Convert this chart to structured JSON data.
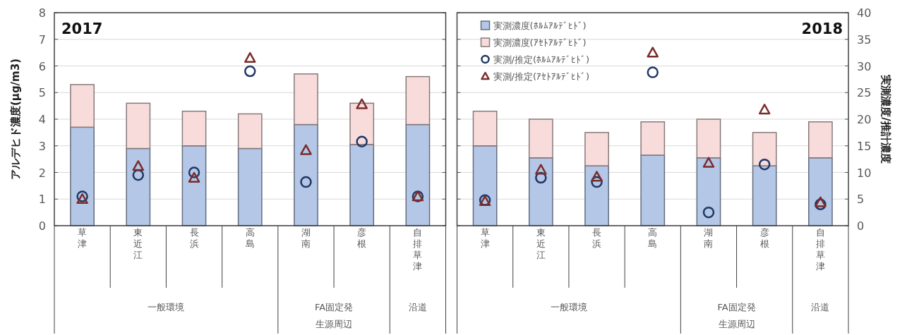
{
  "chart_data": [
    {
      "type": "bar",
      "stacked": true,
      "title": "2017",
      "ylabel": "アルデヒド濃度(μg/m3)",
      "categories": [
        "草津",
        "東近江",
        "長浜",
        "高島",
        "湖南",
        "彦根",
        "自排草津"
      ],
      "ylim": [
        0,
        8
      ],
      "yticks": [
        0,
        1,
        2,
        3,
        4,
        5,
        6,
        7,
        8
      ],
      "y2lim": [
        0,
        40
      ],
      "tick_labels": [
        "x",
        "y"
      ],
      "grid": "y",
      "annotations": [
        "一般環境",
        "FA固定発生源周辺",
        "沿道"
      ],
      "series": [
        {
          "color": "#b4c7e7",
          "values": [
            3.7,
            2.9,
            3.0,
            2.9,
            3.8,
            3.05,
            3.8
          ]
        },
        {
          "color": "#f8dcdc",
          "values": [
            1.6,
            1.7,
            1.3,
            1.3,
            1.9,
            1.55,
            1.8
          ]
        },
        {
          "type": "scatter",
          "axis": "y2",
          "marker": "circle",
          "color": "#203864",
          "values": [
            5.5,
            9.5,
            10,
            29,
            8.2,
            15.8,
            5.5
          ]
        },
        {
          "type": "scatter",
          "axis": "y2",
          "marker": "triangle",
          "color": "#7b2c2c",
          "values": [
            5,
            11.2,
            9,
            31.5,
            14.2,
            22.8,
            5.5
          ]
        }
      ]
    },
    {
      "type": "bar",
      "stacked": true,
      "title": "2018",
      "y2label": "実測濃度/推計濃度",
      "categories": [
        "草津",
        "東近江",
        "長浜",
        "高島",
        "湖南",
        "彦根",
        "自排草津"
      ],
      "ylim": [
        0,
        8
      ],
      "y2lim": [
        0,
        40
      ],
      "y2ticks": [
        0,
        5,
        10,
        15,
        20,
        25,
        30,
        35,
        40
      ],
      "tick_labels": [
        "x",
        "y2"
      ],
      "grid": "y",
      "legend": "top left",
      "annotations": [
        "一般環境",
        "FA固定発生源周辺",
        "沿道"
      ],
      "series": [
        {
          "name": "実測濃度(ﾎﾙﾑｱﾙﾃﾞﾋﾄﾞ)",
          "color": "#b4c7e7",
          "values": [
            3.0,
            2.55,
            2.25,
            2.65,
            2.55,
            2.25,
            2.55
          ]
        },
        {
          "name": "実測濃度(ｱｾﾄｱﾙﾃﾞﾋﾄﾞ)",
          "color": "#f8dcdc",
          "values": [
            1.3,
            1.45,
            1.25,
            1.25,
            1.45,
            1.25,
            1.35
          ]
        },
        {
          "name": "実測/推定(ﾎﾙﾑｱﾙﾃﾞﾋﾄﾞ)",
          "type": "scatter",
          "axis": "y2",
          "marker": "circle",
          "color": "#203864",
          "values": [
            4.8,
            9,
            8.2,
            28.8,
            2.5,
            11.5,
            4.0
          ]
        },
        {
          "name": "実測/推定(ｱｾﾄｱﾙﾃﾞﾋﾄﾞ)",
          "type": "scatter",
          "axis": "y2",
          "marker": "triangle",
          "color": "#7b2c2c",
          "values": [
            4.6,
            10.5,
            9.2,
            32.5,
            11.8,
            21.8,
            4.4
          ]
        }
      ]
    }
  ]
}
